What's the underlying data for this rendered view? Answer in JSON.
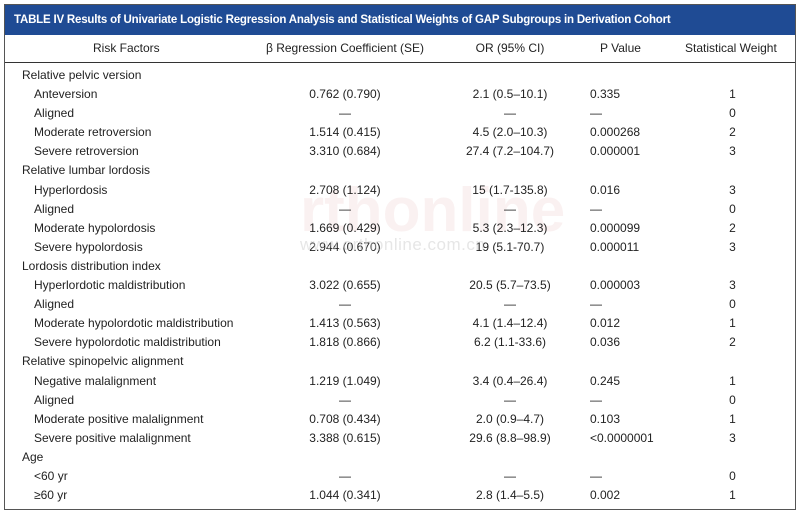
{
  "title": "TABLE IV Results of Univariate Logistic Regression Analysis and Statistical Weights of GAP Subgroups in Derivation Cohort",
  "columns": [
    "Risk Factors",
    "β Regression Coefficient (SE)",
    "OR (95% CI)",
    "P Value",
    "Statistical Weight"
  ],
  "rows": [
    {
      "type": "group",
      "label": "Relative pelvic version"
    },
    {
      "type": "sub",
      "label": "Anteversion",
      "beta": "0.762 (0.790)",
      "or": "2.1 (0.5–10.1)",
      "p": "0.335",
      "weight": "1"
    },
    {
      "type": "sub",
      "label": "Aligned",
      "beta": "—",
      "or": "—",
      "p": "—",
      "weight": "0"
    },
    {
      "type": "sub",
      "label": "Moderate retroversion",
      "beta": "1.514 (0.415)",
      "or": "4.5 (2.0–10.3)",
      "p": "0.000268",
      "weight": "2"
    },
    {
      "type": "sub",
      "label": "Severe retroversion",
      "beta": "3.310 (0.684)",
      "or": "27.4 (7.2–104.7)",
      "p": "0.000001",
      "weight": "3"
    },
    {
      "type": "group",
      "label": "Relative lumbar lordosis"
    },
    {
      "type": "sub",
      "label": "Hyperlordosis",
      "beta": "2.708 (1.124)",
      "or": "15 (1.7-135.8)",
      "p": "0.016",
      "weight": "3"
    },
    {
      "type": "sub",
      "label": "Aligned",
      "beta": "—",
      "or": "—",
      "p": "—",
      "weight": "0"
    },
    {
      "type": "sub",
      "label": "Moderate hypolordosis",
      "beta": "1.669 (0.429)",
      "or": "5.3 (2.3–12.3)",
      "p": "0.000099",
      "weight": "2"
    },
    {
      "type": "sub",
      "label": "Severe hypolordosis",
      "beta": "2.944 (0.670)",
      "or": "19 (5.1-70.7)",
      "p": "0.000011",
      "weight": "3"
    },
    {
      "type": "group",
      "label": "Lordosis distribution index"
    },
    {
      "type": "sub",
      "label": "Hyperlordotic maldistribution",
      "beta": "3.022 (0.655)",
      "or": "20.5 (5.7–73.5)",
      "p": "0.000003",
      "weight": "3"
    },
    {
      "type": "sub",
      "label": "Aligned",
      "beta": "—",
      "or": "—",
      "p": "—",
      "weight": "0"
    },
    {
      "type": "sub",
      "label": "Moderate hypolordotic maldistribution",
      "beta": "1.413 (0.563)",
      "or": "4.1 (1.4–12.4)",
      "p": "0.012",
      "weight": "1"
    },
    {
      "type": "sub",
      "label": "Severe hypolordotic maldistribution",
      "beta": "1.818 (0.866)",
      "or": "6.2 (1.1-33.6)",
      "p": "0.036",
      "weight": "2"
    },
    {
      "type": "group",
      "label": "Relative spinopelvic alignment"
    },
    {
      "type": "sub",
      "label": "Negative malalignment",
      "beta": "1.219 (1.049)",
      "or": "3.4 (0.4–26.4)",
      "p": "0.245",
      "weight": "1"
    },
    {
      "type": "sub",
      "label": "Aligned",
      "beta": "—",
      "or": "—",
      "p": "—",
      "weight": "0"
    },
    {
      "type": "sub",
      "label": "Moderate positive malalignment",
      "beta": "0.708 (0.434)",
      "or": "2.0 (0.9–4.7)",
      "p": "0.103",
      "weight": "1"
    },
    {
      "type": "sub",
      "label": "Severe positive malalignment",
      "beta": "3.388 (0.615)",
      "or": "29.6 (8.8–98.9)",
      "p": "<0.0000001",
      "weight": "3"
    },
    {
      "type": "group",
      "label": "Age"
    },
    {
      "type": "sub",
      "label": "<60 yr",
      "beta": "—",
      "or": "—",
      "p": "—",
      "weight": "0"
    },
    {
      "type": "sub",
      "label": "≥60 yr",
      "beta": "1.044 (0.341)",
      "or": "2.8 (1.4–5.5)",
      "p": "0.002",
      "weight": "1"
    }
  ],
  "watermark": {
    "logo": "rthonline",
    "url": "www.orthonline.com.cn",
    "cn": "骨 科 在 线"
  },
  "colors": {
    "title_bg": "#1f4b94",
    "title_text": "#ffffff"
  }
}
